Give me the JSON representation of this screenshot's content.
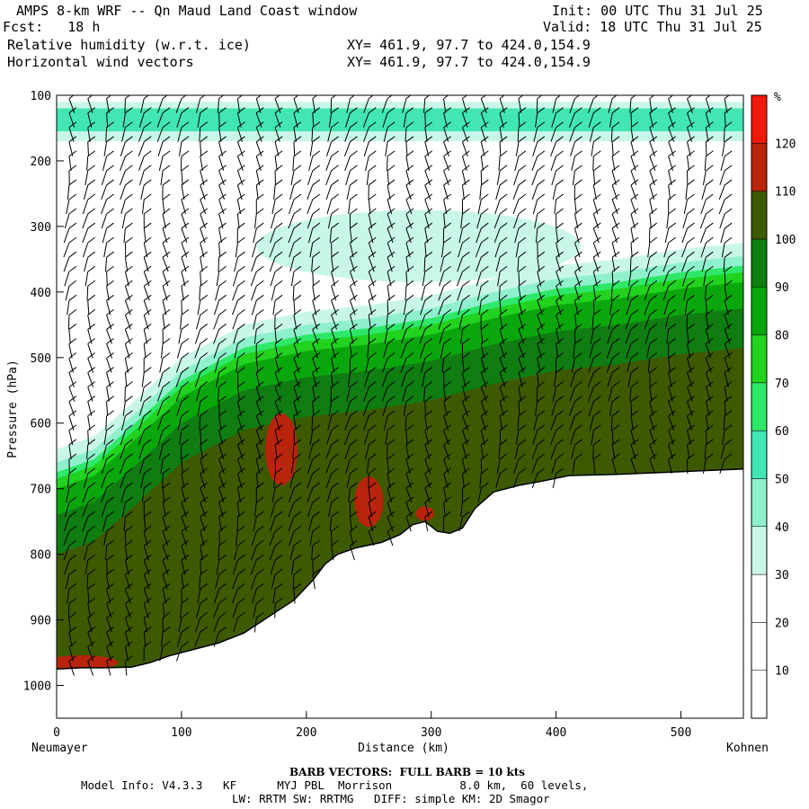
{
  "header": {
    "title": "AMPS 8-km WRF -- Qn Maud Land Coast window",
    "fcst": "Fcst:   18 h",
    "init": "Init: 00 UTC Thu 31 Jul 25",
    "valid": "Valid: 18 UTC Thu 31 Jul 25",
    "field1": "Relative humidity (w.r.t. ice)",
    "field2": "Horizontal wind vectors",
    "xy1": "XY= 461.9, 97.7 to 424.0,154.9",
    "xy2": "XY= 461.9, 97.7 to 424.0,154.9"
  },
  "footer": {
    "barb_note": "BARB VECTORS:  FULL BARB = 10 kts",
    "model_info": "Model Info: V4.3.3   KF      MYJ PBL  Morrison          8.0 km,  60 levels,",
    "physics": "LW: RRTM SW: RRTMG   DIFF: simple KM: 2D Smagor"
  },
  "chart_data": {
    "type": "heatmap",
    "title": "Relative humidity (w.r.t. ice)",
    "xlabel": "Distance (km)",
    "ylabel": "Pressure (hPa)",
    "x_left_label": "Neumayer",
    "x_right_label": "Kohnen",
    "xlim": [
      0,
      550
    ],
    "ylim_hpa": [
      1050,
      100
    ],
    "x_ticks": [
      0,
      100,
      200,
      300,
      400,
      500
    ],
    "y_ticks": [
      100,
      200,
      300,
      400,
      500,
      600,
      700,
      800,
      900,
      1000
    ],
    "colorbar": {
      "unit": "%",
      "levels": [
        10,
        20,
        30,
        40,
        50,
        60,
        70,
        80,
        90,
        100,
        110,
        120
      ],
      "colors": [
        "#ffffff",
        "#ffffff",
        "#ffffff",
        "#c8f7e8",
        "#8ff0cc",
        "#42e6b4",
        "#2ee86a",
        "#21d21f",
        "#0aa70c",
        "#0f7d12",
        "#3e5a00",
        "#b8240c",
        "#ee1b0c"
      ]
    },
    "terrain_profile": {
      "distance_km": [
        0,
        20,
        40,
        60,
        75,
        90,
        110,
        130,
        150,
        170,
        190,
        205,
        215,
        225,
        240,
        260,
        275,
        285,
        295,
        305,
        315,
        325,
        335,
        350,
        370,
        390,
        410,
        450,
        500,
        550
      ],
      "pressure_hpa": [
        975,
        973,
        973,
        972,
        965,
        955,
        945,
        935,
        920,
        895,
        870,
        840,
        815,
        800,
        790,
        782,
        770,
        755,
        750,
        765,
        768,
        760,
        730,
        705,
        695,
        688,
        680,
        678,
        674,
        670
      ]
    },
    "moist_layer_top_hpa": {
      "distance_km": [
        0,
        30,
        60,
        100,
        150,
        200,
        250,
        300,
        350,
        400,
        450,
        500,
        550
      ],
      "pressure_hpa": [
        700,
        680,
        630,
        560,
        510,
        490,
        480,
        465,
        440,
        420,
        410,
        395,
        385
      ]
    },
    "upper_moist_band_hpa": [
      110,
      170
    ],
    "wind_barb_columns_km": [
      10,
      25,
      40,
      55,
      70,
      85,
      100,
      115,
      130,
      145,
      160,
      175,
      190,
      205,
      220,
      235,
      250,
      265,
      280,
      295,
      310,
      325,
      340,
      355,
      370,
      385,
      400,
      415,
      430,
      445,
      460,
      475,
      490,
      505,
      520,
      535
    ]
  }
}
